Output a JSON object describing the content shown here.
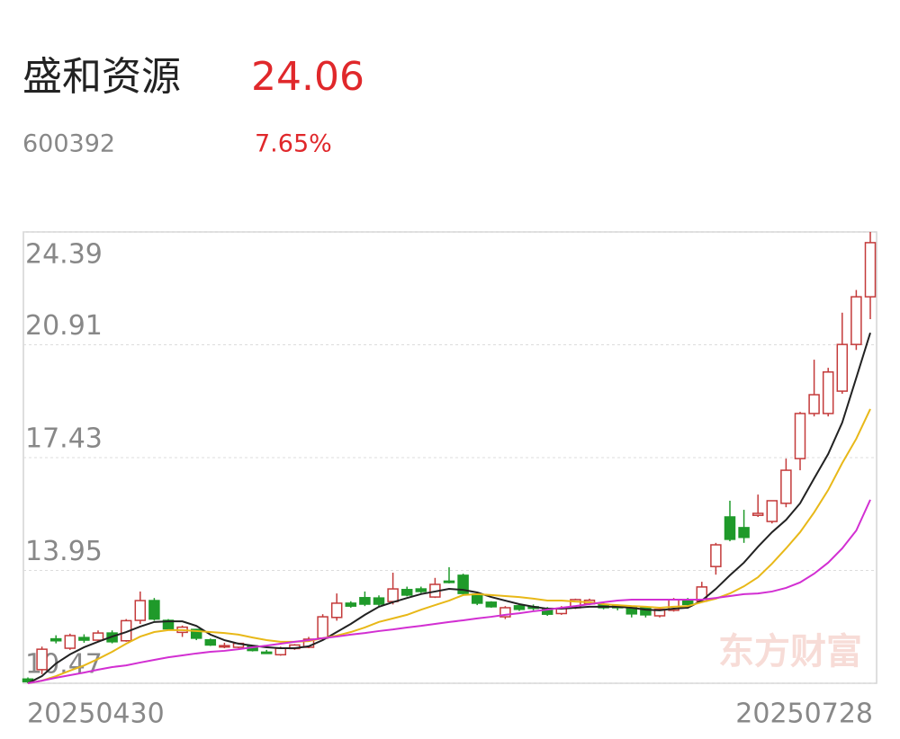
{
  "header": {
    "name": "盛和资源",
    "price": "24.06",
    "code": "600392",
    "change": "7.65%"
  },
  "watermark": "东方财富",
  "chart_data": {
    "type": "candlestick",
    "categories": [
      "20250430",
      null,
      null,
      null,
      null,
      null,
      null,
      null,
      null,
      null,
      null,
      null,
      null,
      null,
      null,
      null,
      null,
      null,
      null,
      null,
      null,
      null,
      null,
      null,
      null,
      null,
      null,
      null,
      null,
      null,
      null,
      null,
      null,
      null,
      null,
      null,
      null,
      null,
      null,
      null,
      null,
      null,
      null,
      null,
      null,
      null,
      null,
      null,
      null,
      null,
      null,
      null,
      null,
      null,
      null,
      null,
      null,
      null,
      null,
      null,
      "20250728"
    ],
    "up_color": "#c43a3a",
    "down_color": "#1f9a2a",
    "open": [
      10.6,
      10.89,
      11.84,
      11.55,
      11.88,
      11.8,
      12.02,
      11.78,
      12.41,
      13.02,
      12.41,
      12.04,
      12.13,
      11.81,
      11.6,
      11.58,
      11.62,
      11.43,
      11.35,
      11.54,
      11.58,
      11.86,
      12.5,
      12.94,
      13.11,
      13.1,
      12.99,
      13.36,
      13.38,
      13.13,
      13.62,
      13.8,
      13.22,
      12.97,
      12.52,
      12.86,
      12.83,
      12.78,
      12.62,
      12.8,
      12.92,
      12.9,
      12.86,
      12.8,
      12.8,
      12.55,
      12.72,
      13.05,
      13.0,
      14.07,
      15.6,
      15.27,
      15.65,
      15.46,
      16.02,
      17.4,
      18.79,
      18.79,
      19.48,
      20.92,
      22.39
    ],
    "high": [
      10.65,
      11.6,
      11.95,
      12.0,
      11.98,
      12.1,
      12.1,
      12.45,
      13.3,
      13.1,
      12.45,
      12.25,
      12.15,
      11.85,
      11.72,
      11.72,
      11.65,
      11.5,
      11.6,
      11.68,
      11.9,
      12.6,
      13.24,
      13.0,
      13.3,
      13.18,
      13.88,
      13.45,
      13.45,
      13.72,
      14.05,
      13.85,
      13.25,
      13.0,
      12.85,
      12.92,
      12.9,
      12.82,
      12.85,
      13.08,
      13.08,
      12.95,
      12.9,
      12.82,
      12.82,
      12.78,
      13.1,
      13.1,
      13.6,
      14.8,
      16.1,
      15.82,
      16.29,
      16.1,
      17.4,
      18.84,
      20.45,
      20.2,
      21.9,
      22.6,
      24.39
    ],
    "low": [
      10.47,
      10.75,
      11.7,
      11.5,
      11.72,
      11.75,
      11.7,
      11.75,
      12.3,
      12.4,
      12.13,
      11.9,
      11.8,
      11.62,
      11.55,
      11.55,
      11.45,
      11.38,
      11.32,
      11.5,
      11.55,
      11.8,
      12.4,
      12.8,
      12.85,
      12.85,
      12.9,
      13.15,
      13.25,
      13.1,
      13.55,
      13.2,
      12.88,
      12.8,
      12.45,
      12.7,
      12.72,
      12.55,
      12.58,
      12.76,
      12.88,
      12.75,
      12.72,
      12.5,
      12.5,
      12.5,
      12.68,
      12.85,
      12.95,
      13.82,
      14.85,
      14.8,
      15.6,
      15.4,
      15.9,
      17.04,
      18.7,
      18.7,
      19.4,
      20.75,
      21.7
    ],
    "close": [
      10.52,
      11.52,
      11.78,
      11.94,
      11.8,
      12.02,
      11.75,
      12.4,
      13.02,
      12.45,
      12.15,
      12.2,
      11.86,
      11.65,
      11.63,
      11.7,
      11.48,
      11.4,
      11.55,
      11.65,
      11.83,
      12.52,
      12.94,
      12.85,
      12.91,
      12.91,
      13.38,
      13.19,
      13.3,
      13.52,
      13.6,
      13.24,
      12.94,
      12.83,
      12.8,
      12.75,
      12.78,
      12.6,
      12.78,
      13.05,
      13.03,
      12.8,
      12.8,
      12.61,
      12.58,
      12.75,
      13.05,
      12.9,
      13.44,
      14.74,
      14.91,
      14.97,
      15.71,
      16.1,
      17.04,
      18.79,
      19.37,
      20.07,
      20.92,
      22.39,
      24.06
    ],
    "lines": [
      {
        "color": "#222222",
        "values": [
          10.47,
          10.69,
          11.08,
          11.36,
          11.58,
          11.75,
          11.91,
          12.05,
          12.22,
          12.36,
          12.38,
          12.38,
          12.24,
          11.97,
          11.8,
          11.69,
          11.63,
          11.58,
          11.55,
          11.55,
          11.61,
          11.8,
          12.05,
          12.3,
          12.58,
          12.83,
          12.97,
          13.1,
          13.22,
          13.3,
          13.38,
          13.35,
          13.27,
          13.13,
          13.02,
          12.91,
          12.83,
          12.77,
          12.77,
          12.8,
          12.83,
          12.83,
          12.83,
          12.8,
          12.74,
          12.72,
          12.77,
          12.8,
          13.02,
          13.38,
          13.8,
          14.19,
          14.68,
          15.13,
          15.51,
          16.02,
          16.79,
          17.54,
          18.51,
          19.89,
          21.28
        ]
      },
      {
        "color": "#e8b818",
        "values": [
          10.47,
          10.55,
          10.69,
          10.86,
          11.02,
          11.22,
          11.44,
          11.69,
          11.91,
          12.05,
          12.11,
          12.11,
          12.08,
          12.05,
          12.02,
          11.97,
          11.88,
          11.8,
          11.75,
          11.75,
          11.77,
          11.86,
          11.94,
          12.05,
          12.19,
          12.36,
          12.47,
          12.58,
          12.74,
          12.88,
          13.02,
          13.19,
          13.22,
          13.19,
          13.16,
          13.13,
          13.08,
          13.02,
          13.02,
          12.99,
          12.97,
          12.91,
          12.88,
          12.85,
          12.83,
          12.8,
          12.83,
          12.85,
          12.97,
          13.08,
          13.24,
          13.46,
          13.74,
          14.16,
          14.63,
          15.13,
          15.74,
          16.43,
          17.26,
          18.01,
          18.93
        ]
      },
      {
        "color": "#d22fd2",
        "values": [
          10.47,
          10.55,
          10.64,
          10.72,
          10.8,
          10.89,
          10.97,
          11.02,
          11.11,
          11.19,
          11.27,
          11.33,
          11.39,
          11.44,
          11.47,
          11.52,
          11.58,
          11.63,
          11.69,
          11.75,
          11.8,
          11.86,
          11.91,
          11.97,
          12.02,
          12.08,
          12.13,
          12.19,
          12.24,
          12.3,
          12.36,
          12.41,
          12.47,
          12.52,
          12.58,
          12.63,
          12.69,
          12.74,
          12.8,
          12.85,
          12.91,
          12.97,
          13.02,
          13.05,
          13.05,
          13.05,
          13.05,
          13.05,
          13.05,
          13.1,
          13.16,
          13.22,
          13.24,
          13.3,
          13.41,
          13.58,
          13.85,
          14.19,
          14.63,
          15.18,
          16.13
        ]
      }
    ],
    "ylim": [
      10.47,
      24.39
    ],
    "yticks": [
      24.39,
      20.91,
      17.43,
      13.95,
      10.47
    ],
    "grid": true
  }
}
